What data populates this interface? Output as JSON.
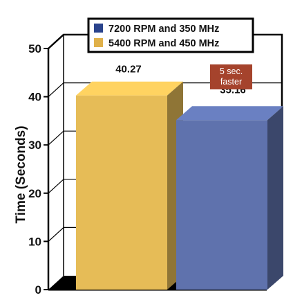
{
  "chart_data": {
    "type": "bar",
    "title": "",
    "xlabel": "",
    "ylabel": "Time (Seconds)",
    "ylim": [
      0,
      50
    ],
    "yticks": [
      "0",
      "10",
      "20",
      "30",
      "40",
      "50"
    ],
    "grid": true,
    "legend_placement": "top",
    "series": [
      {
        "name": "5400 RPM and 450 MHz",
        "value": 40.27,
        "label": "40.27",
        "color": "#E6BC57"
      },
      {
        "name": "7200 RPM and 350 MHz",
        "value": 35.16,
        "label": "35.16",
        "color": "#5F72AD"
      }
    ],
    "legend": [
      {
        "name": "7200 RPM and 350 MHz",
        "color": "#2A438C"
      },
      {
        "name": "5400 RPM and 450 MHz",
        "color": "#E0B14A"
      }
    ],
    "annotation": {
      "line1": "5 sec.",
      "line2": "faster",
      "color": "#A5432C"
    }
  }
}
